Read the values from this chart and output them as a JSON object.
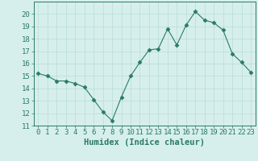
{
  "title": "",
  "xlabel": "Humidex (Indice chaleur)",
  "ylabel": "",
  "x": [
    0,
    1,
    2,
    3,
    4,
    5,
    6,
    7,
    8,
    9,
    10,
    11,
    12,
    13,
    14,
    15,
    16,
    17,
    18,
    19,
    20,
    21,
    22,
    23
  ],
  "y": [
    15.2,
    15.0,
    14.6,
    14.6,
    14.4,
    14.1,
    13.1,
    12.1,
    11.4,
    13.3,
    15.0,
    16.1,
    17.1,
    17.2,
    18.8,
    17.5,
    19.1,
    20.2,
    19.5,
    19.3,
    18.7,
    16.8,
    16.1,
    15.3
  ],
  "line_color": "#2a7a66",
  "marker": "D",
  "marker_size": 2.5,
  "bg_color": "#d6efec",
  "grid_color": "#b8dbd7",
  "ylim": [
    11,
    21
  ],
  "xlim": [
    -0.5,
    23.5
  ],
  "yticks": [
    11,
    12,
    13,
    14,
    15,
    16,
    17,
    18,
    19,
    20
  ],
  "xtick_labels": [
    "0",
    "1",
    "2",
    "3",
    "4",
    "5",
    "6",
    "7",
    "8",
    "9",
    "10",
    "11",
    "12",
    "13",
    "14",
    "15",
    "16",
    "17",
    "18",
    "19",
    "20",
    "21",
    "22",
    "23"
  ],
  "tick_fontsize": 6.5,
  "xlabel_fontsize": 7.5,
  "axis_color": "#2a7a66"
}
